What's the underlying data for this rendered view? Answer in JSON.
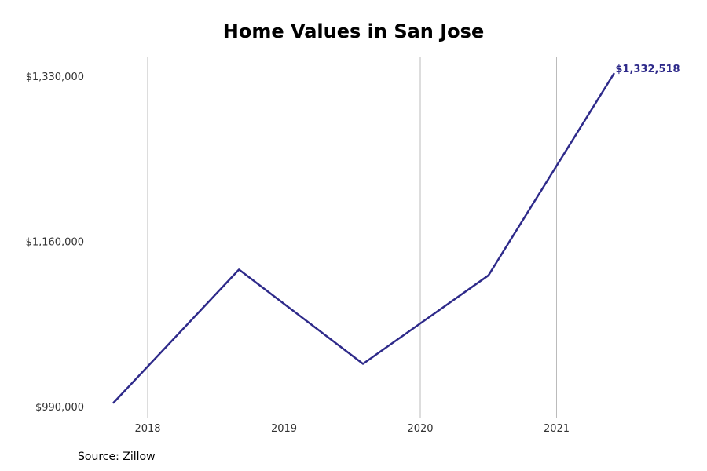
{
  "chart_data": {
    "type": "line",
    "title": "Home Values in San Jose",
    "xlabel": "",
    "ylabel": "",
    "x": [
      2017.75,
      2018.67,
      2019.58,
      2020.5,
      2021.42
    ],
    "values": [
      994000,
      1131000,
      1034000,
      1125000,
      1332518
    ],
    "ylim": [
      990000,
      1330000
    ],
    "xlim": [
      2017.5,
      2022.0
    ],
    "xticks": [
      {
        "value": 2018,
        "label": "2018"
      },
      {
        "value": 2019,
        "label": "2019"
      },
      {
        "value": 2020,
        "label": "2020"
      },
      {
        "value": 2021,
        "label": "2021"
      }
    ],
    "yticks": [
      {
        "value": 990000,
        "label": "$990,000"
      },
      {
        "value": 1160000,
        "label": "$1,160,000"
      },
      {
        "value": 1330000,
        "label": "$1,330,000"
      }
    ],
    "end_label": "$1,332,518",
    "grid": "vertical",
    "line_color": "#2e2a8a",
    "grid_color": "#bbbbbb"
  },
  "source": "Source: Zillow"
}
